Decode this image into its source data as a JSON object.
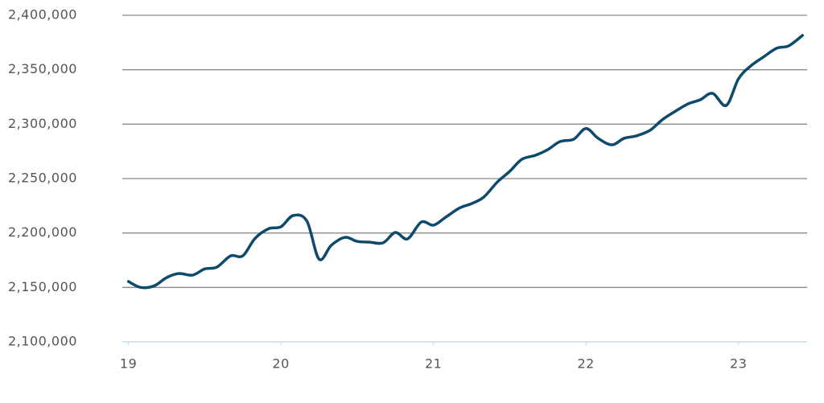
{
  "chart_data": {
    "type": "line",
    "x": [
      19,
      19.08,
      19.17,
      19.25,
      19.33,
      19.42,
      19.5,
      19.58,
      19.67,
      19.75,
      19.83,
      19.92,
      20,
      20.08,
      20.17,
      20.25,
      20.33,
      20.42,
      20.5,
      20.58,
      20.67,
      20.75,
      20.83,
      20.92,
      21,
      21.08,
      21.17,
      21.25,
      21.33,
      21.42,
      21.5,
      21.58,
      21.67,
      21.75,
      21.83,
      21.92,
      22,
      22.08,
      22.17,
      22.25,
      22.33,
      22.42,
      22.5,
      22.58,
      22.67,
      22.75,
      22.83,
      22.92,
      23,
      23.08,
      23.17,
      23.25,
      23.33,
      23.42
    ],
    "series": [
      {
        "color": "#0e4a6c",
        "values": [
          2155500,
          2150000,
          2151500,
          2159000,
          2162800,
          2161300,
          2167000,
          2168700,
          2179000,
          2179000,
          2195000,
          2204000,
          2205700,
          2216000,
          2211000,
          2176000,
          2188700,
          2196000,
          2192300,
          2191600,
          2191000,
          2200500,
          2194600,
          2210000,
          2207200,
          2214500,
          2222900,
          2227000,
          2233000,
          2247000,
          2256600,
          2267700,
          2271400,
          2276600,
          2284000,
          2286200,
          2296000,
          2287000,
          2281000,
          2287000,
          2289200,
          2294300,
          2304000,
          2311300,
          2318700,
          2322400,
          2328300,
          2317200,
          2341600,
          2353400,
          2362300,
          2369700,
          2372000,
          2381500
        ]
      }
    ],
    "xlim": [
      18.96,
      23.45
    ],
    "xticks": [
      19,
      20,
      21,
      22,
      23
    ],
    "ylim": [
      2100000,
      2400000
    ],
    "yticks": [
      {
        "value": 2100000,
        "label": "2,100,000"
      },
      {
        "value": 2150000,
        "label": "2,150,000"
      },
      {
        "value": 2200000,
        "label": "2,200,000"
      },
      {
        "value": 2250000,
        "label": "2,250,000"
      },
      {
        "value": 2300000,
        "label": "2,300,000"
      },
      {
        "value": 2350000,
        "label": "2,350,000"
      },
      {
        "value": 2400000,
        "label": "2,400,000"
      }
    ],
    "grid": true
  }
}
